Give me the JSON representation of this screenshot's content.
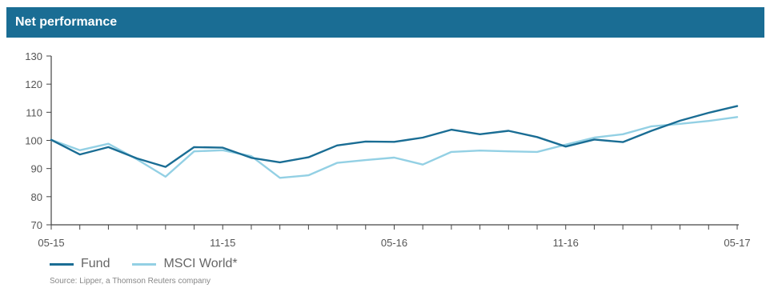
{
  "header": {
    "title": "Net performance"
  },
  "chart_data": {
    "type": "line",
    "title": "Net performance",
    "ylim": [
      70,
      130
    ],
    "yticks": [
      70,
      80,
      90,
      100,
      110,
      120,
      130
    ],
    "x_tick_labels": [
      "05-15",
      "11-15",
      "05-16",
      "11-16",
      "05-17"
    ],
    "x": [
      "05-15",
      "06-15",
      "07-15",
      "08-15",
      "09-15",
      "10-15",
      "11-15",
      "12-15",
      "01-16",
      "02-16",
      "03-16",
      "04-16",
      "05-16",
      "06-16",
      "07-16",
      "08-16",
      "09-16",
      "10-16",
      "11-16",
      "12-16",
      "01-17",
      "02-17",
      "03-17",
      "04-17",
      "05-17"
    ],
    "series": [
      {
        "name": "Fund",
        "color": "#1a6d94",
        "values": [
          100.2,
          95.0,
          97.6,
          93.6,
          90.6,
          97.6,
          97.4,
          93.8,
          92.2,
          94.0,
          98.2,
          99.6,
          99.5,
          101.0,
          103.8,
          102.2,
          103.4,
          101.2,
          97.8,
          100.3,
          99.4,
          103.4,
          107.0,
          109.8,
          112.2
        ]
      },
      {
        "name": "MSCI World*",
        "color": "#93d0e4",
        "values": [
          100.2,
          96.5,
          98.8,
          93.3,
          87.1,
          96.1,
          96.5,
          94.4,
          86.7,
          87.6,
          92.0,
          93.0,
          93.9,
          91.4,
          95.9,
          96.4,
          96.1,
          95.9,
          98.5,
          101.0,
          102.2,
          105.0,
          105.9,
          106.9,
          108.3
        ]
      }
    ],
    "grid": false,
    "legend_position": "bottom-left"
  },
  "legend": {
    "items": [
      "Fund",
      "MSCI World*"
    ]
  },
  "source": "Source: Lipper, a Thomson Reuters company"
}
